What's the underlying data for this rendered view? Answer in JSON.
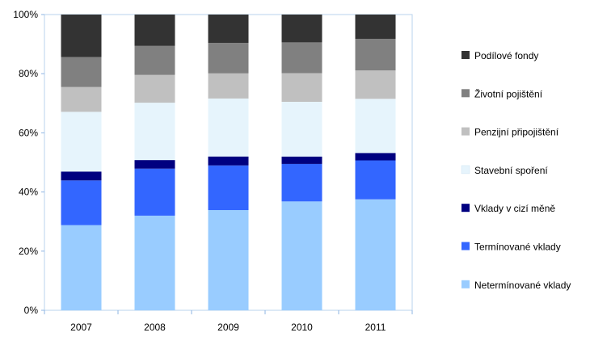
{
  "chart_data": {
    "type": "bar",
    "stacked": true,
    "percent": true,
    "categories": [
      "2007",
      "2008",
      "2009",
      "2010",
      "2011"
    ],
    "ylim": [
      0,
      100
    ],
    "yticks": [
      "0%",
      "20%",
      "40%",
      "60%",
      "80%",
      "100%"
    ],
    "grid": false,
    "legend_position": "right",
    "series": [
      {
        "name": "Netermínované vklady",
        "color": "#99ccff",
        "values": [
          28.8,
          32.0,
          33.9,
          36.8,
          37.5
        ]
      },
      {
        "name": "Termínované vklady",
        "color": "#3366ff",
        "values": [
          15.1,
          15.9,
          15.1,
          12.7,
          13.2
        ]
      },
      {
        "name": "Vklady v cizí měně",
        "color": "#000080",
        "values": [
          3.0,
          2.9,
          3.0,
          2.5,
          2.5
        ]
      },
      {
        "name": "Stavební spoření",
        "color": "#e6f4fc",
        "values": [
          20.2,
          19.4,
          19.6,
          18.5,
          18.3
        ]
      },
      {
        "name": "Penzijní připojištění",
        "color": "#c0c0c0",
        "values": [
          8.4,
          9.4,
          8.5,
          9.7,
          9.6
        ]
      },
      {
        "name": "Životní pojištění",
        "color": "#808080",
        "values": [
          10.1,
          9.8,
          10.3,
          10.4,
          10.7
        ]
      },
      {
        "name": "Podílové fondy",
        "color": "#333333",
        "values": [
          14.4,
          10.6,
          9.6,
          9.4,
          8.2
        ]
      }
    ]
  }
}
